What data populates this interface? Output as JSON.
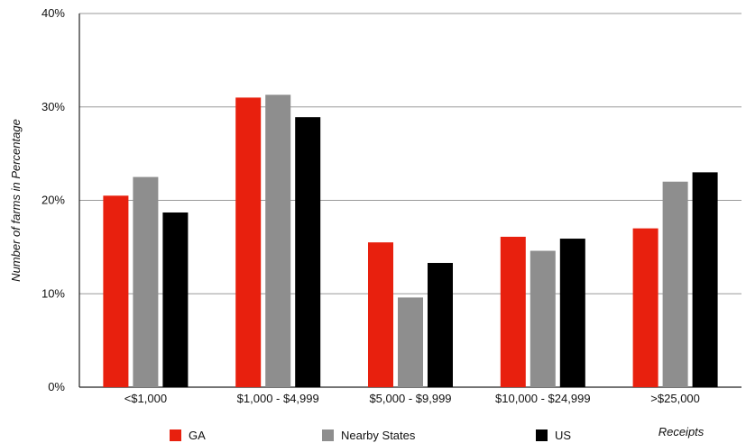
{
  "chart_data": {
    "type": "bar",
    "ylabel": "Number of farms in Percentage",
    "xlabel": "Receipts",
    "ylim": [
      0,
      40
    ],
    "y_ticks": [
      "0%",
      "10%",
      "20%",
      "30%",
      "40%"
    ],
    "y_tick_values": [
      0,
      10,
      20,
      30,
      40
    ],
    "grid": true,
    "legend_placement": "bottom",
    "categories": [
      "<$1,000",
      "$1,000 - $4,999",
      "$5,000 - $9,999",
      "$10,000 - $24,999",
      ">$25,000"
    ],
    "series": [
      {
        "name": "GA",
        "color": "#e8200e",
        "values": [
          20.5,
          31.0,
          15.5,
          16.1,
          17.0
        ]
      },
      {
        "name": "Nearby States",
        "color": "#8e8e8e",
        "values": [
          22.5,
          31.3,
          9.6,
          14.6,
          22.0
        ]
      },
      {
        "name": "US",
        "color": "#000000",
        "values": [
          18.7,
          28.9,
          13.3,
          15.9,
          23.0
        ]
      }
    ]
  }
}
